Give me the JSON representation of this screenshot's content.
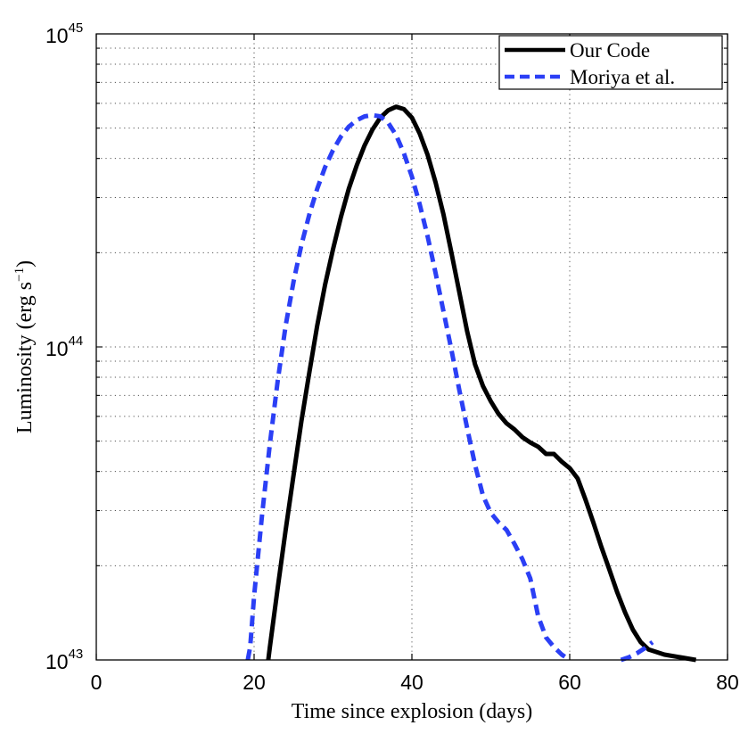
{
  "chart_data": {
    "type": "line",
    "title": "",
    "xlabel": "Time since explosion (days)",
    "ylabel": {
      "prefix": "Luminosity (erg s",
      "exponent": "−1",
      "suffix": ")"
    },
    "xlim": [
      0,
      80
    ],
    "ylim": [
      1e+43,
      1e+45
    ],
    "yscale": "log",
    "grid": true,
    "legend_position": "top-right",
    "x_ticks": [
      "0",
      "20",
      "40",
      "60",
      "80"
    ],
    "y_ticks": [
      {
        "base": "10",
        "exp": "43"
      },
      {
        "base": "10",
        "exp": "44"
      },
      {
        "base": "10",
        "exp": "45"
      }
    ],
    "series": [
      {
        "name": "Our Code",
        "color": "#000000",
        "style": "solid",
        "points": [
          [
            21.8,
            1e+43
          ],
          [
            22,
            1.1e+43
          ],
          [
            23,
            1.7e+43
          ],
          [
            24,
            2.6e+43
          ],
          [
            25,
            3.9e+43
          ],
          [
            26,
            5.8e+43
          ],
          [
            27,
            8.3e+43
          ],
          [
            28,
            1.17e+44
          ],
          [
            29,
            1.58e+44
          ],
          [
            30,
            2.05e+44
          ],
          [
            31,
            2.6e+44
          ],
          [
            32,
            3.2e+44
          ],
          [
            33,
            3.8e+44
          ],
          [
            34,
            4.4e+44
          ],
          [
            35,
            4.95e+44
          ],
          [
            36,
            5.4e+44
          ],
          [
            37,
            5.7e+44
          ],
          [
            38,
            5.85e+44
          ],
          [
            39,
            5.75e+44
          ],
          [
            40,
            5.4e+44
          ],
          [
            41,
            4.8e+44
          ],
          [
            42,
            4.1e+44
          ],
          [
            43,
            3.35e+44
          ],
          [
            44,
            2.65e+44
          ],
          [
            45,
            2e+44
          ],
          [
            46,
            1.5e+44
          ],
          [
            47,
            1.12e+44
          ],
          [
            48,
            8.8e+43
          ],
          [
            49,
            7.5e+43
          ],
          [
            50,
            6.7e+43
          ],
          [
            51,
            6.1e+43
          ],
          [
            52,
            5.7e+43
          ],
          [
            53,
            5.45e+43
          ],
          [
            54,
            5.15e+43
          ],
          [
            55,
            4.95e+43
          ],
          [
            56,
            4.8e+43
          ],
          [
            57,
            4.55e+43
          ],
          [
            58,
            4.55e+43
          ],
          [
            59,
            4.3e+43
          ],
          [
            60,
            4.1e+43
          ],
          [
            61,
            3.8e+43
          ],
          [
            62,
            3.25e+43
          ],
          [
            63,
            2.75e+43
          ],
          [
            64,
            2.3e+43
          ],
          [
            65,
            1.95e+43
          ],
          [
            66,
            1.65e+43
          ],
          [
            67,
            1.42e+43
          ],
          [
            68,
            1.25e+43
          ],
          [
            69,
            1.14e+43
          ],
          [
            70,
            1.08e+43
          ],
          [
            72,
            1.04e+43
          ],
          [
            74,
            1.02e+43
          ],
          [
            76,
            1e+43
          ]
        ]
      },
      {
        "name": "Moriya et al.",
        "color": "#2b3ff5",
        "style": "dashed",
        "points": [
          [
            19.2,
            1e+43
          ],
          [
            19.5,
            1.1e+43
          ],
          [
            20,
            1.6e+43
          ],
          [
            21,
            2.9e+43
          ],
          [
            22,
            4.9e+43
          ],
          [
            23,
            7.8e+43
          ],
          [
            24,
            1.17e+44
          ],
          [
            25,
            1.62e+44
          ],
          [
            26,
            2.12e+44
          ],
          [
            27,
            2.65e+44
          ],
          [
            28,
            3.2e+44
          ],
          [
            29,
            3.75e+44
          ],
          [
            30,
            4.25e+44
          ],
          [
            31,
            4.7e+44
          ],
          [
            32,
            5.05e+44
          ],
          [
            33,
            5.3e+44
          ],
          [
            34,
            5.45e+44
          ],
          [
            35,
            5.5e+44
          ],
          [
            36,
            5.45e+44
          ],
          [
            37,
            5.2e+44
          ],
          [
            38,
            4.75e+44
          ],
          [
            39,
            4.15e+44
          ],
          [
            40,
            3.5e+44
          ],
          [
            41,
            2.85e+44
          ],
          [
            42,
            2.25e+44
          ],
          [
            43,
            1.72e+44
          ],
          [
            44,
            1.3e+44
          ],
          [
            45,
            9.8e+43
          ],
          [
            46,
            7.3e+43
          ],
          [
            47,
            5.5e+43
          ],
          [
            48,
            4.2e+43
          ],
          [
            49,
            3.35e+43
          ],
          [
            50,
            2.95e+43
          ],
          [
            51,
            2.75e+43
          ],
          [
            52,
            2.6e+43
          ],
          [
            53,
            2.35e+43
          ],
          [
            54,
            2.1e+43
          ],
          [
            55,
            1.82e+43
          ],
          [
            56,
            1.38e+43
          ],
          [
            57,
            1.18e+43
          ],
          [
            58,
            1.1e+43
          ],
          [
            59,
            1.04e+43
          ],
          [
            60,
            1e+43
          ]
        ]
      },
      {
        "name": "Moriya et al. (late)",
        "color": "#2b3ff5",
        "style": "dashed",
        "legend": false,
        "points": [
          [
            66.5,
            1e+43
          ],
          [
            67.5,
            1.02e+43
          ],
          [
            68.5,
            1.05e+43
          ],
          [
            69.5,
            1.09e+43
          ],
          [
            70.5,
            1.14e+43
          ]
        ]
      }
    ]
  }
}
